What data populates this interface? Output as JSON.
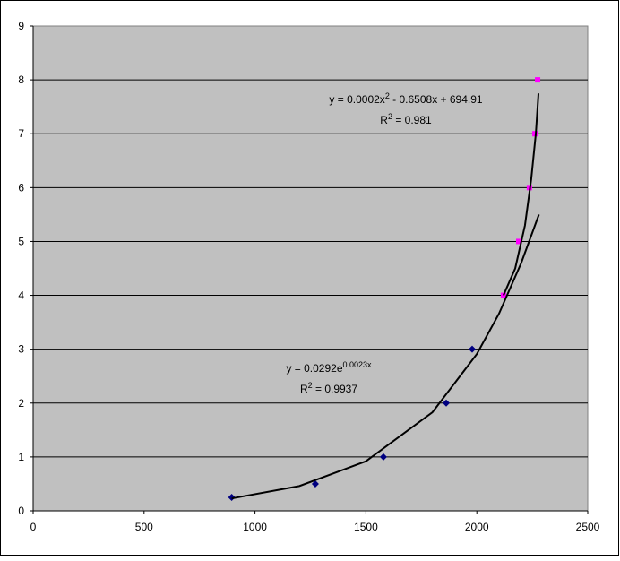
{
  "chart_data": {
    "type": "scatter",
    "xlim": [
      0,
      2500
    ],
    "xticks": [
      0,
      500,
      1000,
      1500,
      2000,
      2500
    ],
    "ylim": [
      0,
      9
    ],
    "yticks": [
      0,
      1,
      2,
      3,
      4,
      5,
      6,
      7,
      8,
      9
    ],
    "grid": true,
    "series": [
      {
        "color": "#000080",
        "marker": "diamond",
        "x": [
          895,
          1272,
          1579,
          1862,
          1979
        ],
        "values": [
          0.25,
          0.5,
          1,
          2,
          3
        ]
      },
      {
        "color": "#ff00ff",
        "marker": "square",
        "x": [
          2120,
          2189,
          2237,
          2262,
          2274
        ],
        "values": [
          4,
          5,
          6,
          7,
          8
        ]
      },
      {
        "color": "#000000",
        "marker": "line",
        "x": [
          895,
          1200,
          1500,
          1800,
          2000,
          2100,
          2200,
          2280
        ],
        "values": [
          0.23,
          0.46,
          0.92,
          1.83,
          2.91,
          3.66,
          4.6,
          5.5
        ]
      },
      {
        "color": "#000000",
        "marker": "line",
        "x": [
          2120,
          2173,
          2217,
          2245,
          2266,
          2278
        ],
        "values": [
          4.0,
          4.5,
          5.3,
          6.15,
          7.0,
          7.75
        ]
      }
    ],
    "annotations": [
      [
        [
          "y = 0.0002x",
          "2",
          " - 0.6508x + 694.91"
        ],
        [
          "R",
          "2",
          " = 0.981"
        ]
      ],
      [
        [
          "y = 0.0292e",
          "0.0023x"
        ],
        [
          "R",
          "2",
          " = 0.9937"
        ]
      ]
    ]
  }
}
